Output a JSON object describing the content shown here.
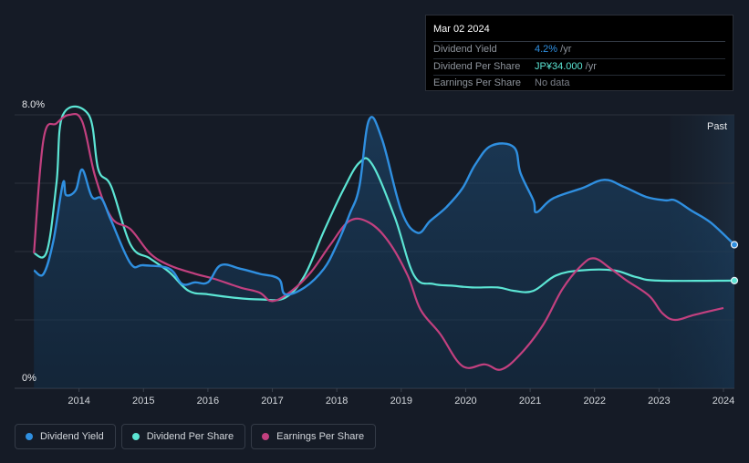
{
  "tooltip": {
    "date": "Mar 02 2024",
    "rows": [
      {
        "label": "Dividend Yield",
        "value": "4.2%",
        "unit": " /yr",
        "color": "#2f8fe0"
      },
      {
        "label": "Dividend Per Share",
        "value": "JP¥34.000",
        "unit": " /yr",
        "color": "#5ce5d4"
      },
      {
        "label": "Earnings Per Share",
        "value": "No data",
        "unit": "",
        "color": "#7c818a"
      }
    ]
  },
  "past_label": "Past",
  "colors": {
    "yield": "#2f8fe0",
    "dps": "#5ce5d4",
    "eps": "#c2407f",
    "background": "#151b26",
    "grid": "#2a313c"
  },
  "chart_data": {
    "type": "line",
    "title": "",
    "xlabel": "",
    "ylabel": "",
    "ylim": [
      0,
      8
    ],
    "xlim": [
      2013.0,
      2024.17
    ],
    "y_tick_labels": [
      {
        "value": 8,
        "label": "8.0%"
      },
      {
        "value": 0,
        "label": "0%"
      }
    ],
    "x_ticks": [
      2014,
      2015,
      2016,
      2017,
      2018,
      2019,
      2020,
      2021,
      2022,
      2023,
      2024
    ],
    "x_tick_labels": [
      "2014",
      "2015",
      "2016",
      "2017",
      "2018",
      "2019",
      "2020",
      "2021",
      "2022",
      "2023",
      "2024"
    ],
    "series": [
      {
        "name": "Dividend Yield",
        "key": "yield",
        "unit": "% (left axis)",
        "points": [
          [
            2013.3,
            3.45
          ],
          [
            2013.45,
            3.35
          ],
          [
            2013.6,
            4.3
          ],
          [
            2013.75,
            6.0
          ],
          [
            2013.8,
            5.65
          ],
          [
            2013.95,
            5.8
          ],
          [
            2014.05,
            6.4
          ],
          [
            2014.2,
            5.6
          ],
          [
            2014.35,
            5.55
          ],
          [
            2014.5,
            4.9
          ],
          [
            2014.8,
            3.65
          ],
          [
            2015.0,
            3.6
          ],
          [
            2015.4,
            3.5
          ],
          [
            2015.6,
            3.05
          ],
          [
            2015.8,
            3.1
          ],
          [
            2016.0,
            3.1
          ],
          [
            2016.2,
            3.6
          ],
          [
            2016.5,
            3.5
          ],
          [
            2016.8,
            3.35
          ],
          [
            2017.1,
            3.2
          ],
          [
            2017.2,
            2.75
          ],
          [
            2017.5,
            2.95
          ],
          [
            2017.8,
            3.5
          ],
          [
            2018.0,
            4.2
          ],
          [
            2018.2,
            5.1
          ],
          [
            2018.35,
            5.9
          ],
          [
            2018.5,
            7.85
          ],
          [
            2018.7,
            7.3
          ],
          [
            2019.0,
            5.2
          ],
          [
            2019.25,
            4.55
          ],
          [
            2019.45,
            4.9
          ],
          [
            2019.7,
            5.3
          ],
          [
            2019.95,
            5.85
          ],
          [
            2020.15,
            6.55
          ],
          [
            2020.4,
            7.1
          ],
          [
            2020.75,
            7.05
          ],
          [
            2020.85,
            6.3
          ],
          [
            2021.05,
            5.5
          ],
          [
            2021.1,
            5.15
          ],
          [
            2021.35,
            5.55
          ],
          [
            2021.8,
            5.85
          ],
          [
            2022.15,
            6.1
          ],
          [
            2022.45,
            5.9
          ],
          [
            2022.8,
            5.6
          ],
          [
            2023.1,
            5.5
          ],
          [
            2023.25,
            5.5
          ],
          [
            2023.5,
            5.2
          ],
          [
            2023.8,
            4.85
          ],
          [
            2024.17,
            4.2
          ]
        ],
        "end_marker": true
      },
      {
        "name": "Dividend Per Share",
        "key": "dps",
        "unit": "JP¥ (independent scale)",
        "points": [
          [
            2013.3,
            3.95
          ],
          [
            2013.5,
            4.0
          ],
          [
            2013.65,
            6.0
          ],
          [
            2013.75,
            8.0
          ],
          [
            2014.15,
            8.0
          ],
          [
            2014.3,
            6.4
          ],
          [
            2014.5,
            5.9
          ],
          [
            2014.8,
            4.2
          ],
          [
            2015.1,
            3.8
          ],
          [
            2015.4,
            3.4
          ],
          [
            2015.7,
            2.85
          ],
          [
            2016.0,
            2.75
          ],
          [
            2016.4,
            2.65
          ],
          [
            2016.8,
            2.6
          ],
          [
            2017.2,
            2.65
          ],
          [
            2017.5,
            3.3
          ],
          [
            2017.8,
            4.6
          ],
          [
            2018.1,
            5.8
          ],
          [
            2018.35,
            6.6
          ],
          [
            2018.55,
            6.55
          ],
          [
            2018.9,
            5.0
          ],
          [
            2019.2,
            3.3
          ],
          [
            2019.5,
            3.05
          ],
          [
            2019.8,
            3.0
          ],
          [
            2020.1,
            2.95
          ],
          [
            2020.5,
            2.95
          ],
          [
            2020.75,
            2.85
          ],
          [
            2021.05,
            2.85
          ],
          [
            2021.4,
            3.3
          ],
          [
            2021.8,
            3.45
          ],
          [
            2022.3,
            3.45
          ],
          [
            2022.65,
            3.25
          ],
          [
            2023.0,
            3.15
          ],
          [
            2024.17,
            3.15
          ]
        ],
        "end_marker": true
      },
      {
        "name": "Earnings Per Share",
        "key": "eps",
        "unit": "JP¥ (independent scale)",
        "points": [
          [
            2013.3,
            3.95
          ],
          [
            2013.45,
            7.3
          ],
          [
            2013.65,
            7.75
          ],
          [
            2013.85,
            8.0
          ],
          [
            2014.05,
            7.8
          ],
          [
            2014.25,
            6.2
          ],
          [
            2014.5,
            5.0
          ],
          [
            2014.8,
            4.65
          ],
          [
            2015.1,
            3.95
          ],
          [
            2015.4,
            3.6
          ],
          [
            2015.8,
            3.35
          ],
          [
            2016.1,
            3.2
          ],
          [
            2016.5,
            2.95
          ],
          [
            2016.8,
            2.8
          ],
          [
            2017.0,
            2.55
          ],
          [
            2017.3,
            2.85
          ],
          [
            2017.6,
            3.4
          ],
          [
            2017.9,
            4.2
          ],
          [
            2018.2,
            4.9
          ],
          [
            2018.5,
            4.85
          ],
          [
            2018.8,
            4.3
          ],
          [
            2019.1,
            3.3
          ],
          [
            2019.3,
            2.3
          ],
          [
            2019.6,
            1.6
          ],
          [
            2019.95,
            0.65
          ],
          [
            2020.3,
            0.7
          ],
          [
            2020.55,
            0.55
          ],
          [
            2020.85,
            1.0
          ],
          [
            2021.2,
            1.85
          ],
          [
            2021.5,
            2.9
          ],
          [
            2021.8,
            3.6
          ],
          [
            2022.0,
            3.8
          ],
          [
            2022.25,
            3.5
          ],
          [
            2022.5,
            3.15
          ],
          [
            2022.85,
            2.7
          ],
          [
            2023.05,
            2.2
          ],
          [
            2023.25,
            2.0
          ],
          [
            2023.55,
            2.15
          ],
          [
            2024.0,
            2.35
          ]
        ],
        "end_marker": false
      }
    ],
    "past_region_start": 2023.17,
    "legend": [
      "Dividend Yield",
      "Dividend Per Share",
      "Earnings Per Share"
    ],
    "legend_position": "bottom-left",
    "grid": true
  }
}
